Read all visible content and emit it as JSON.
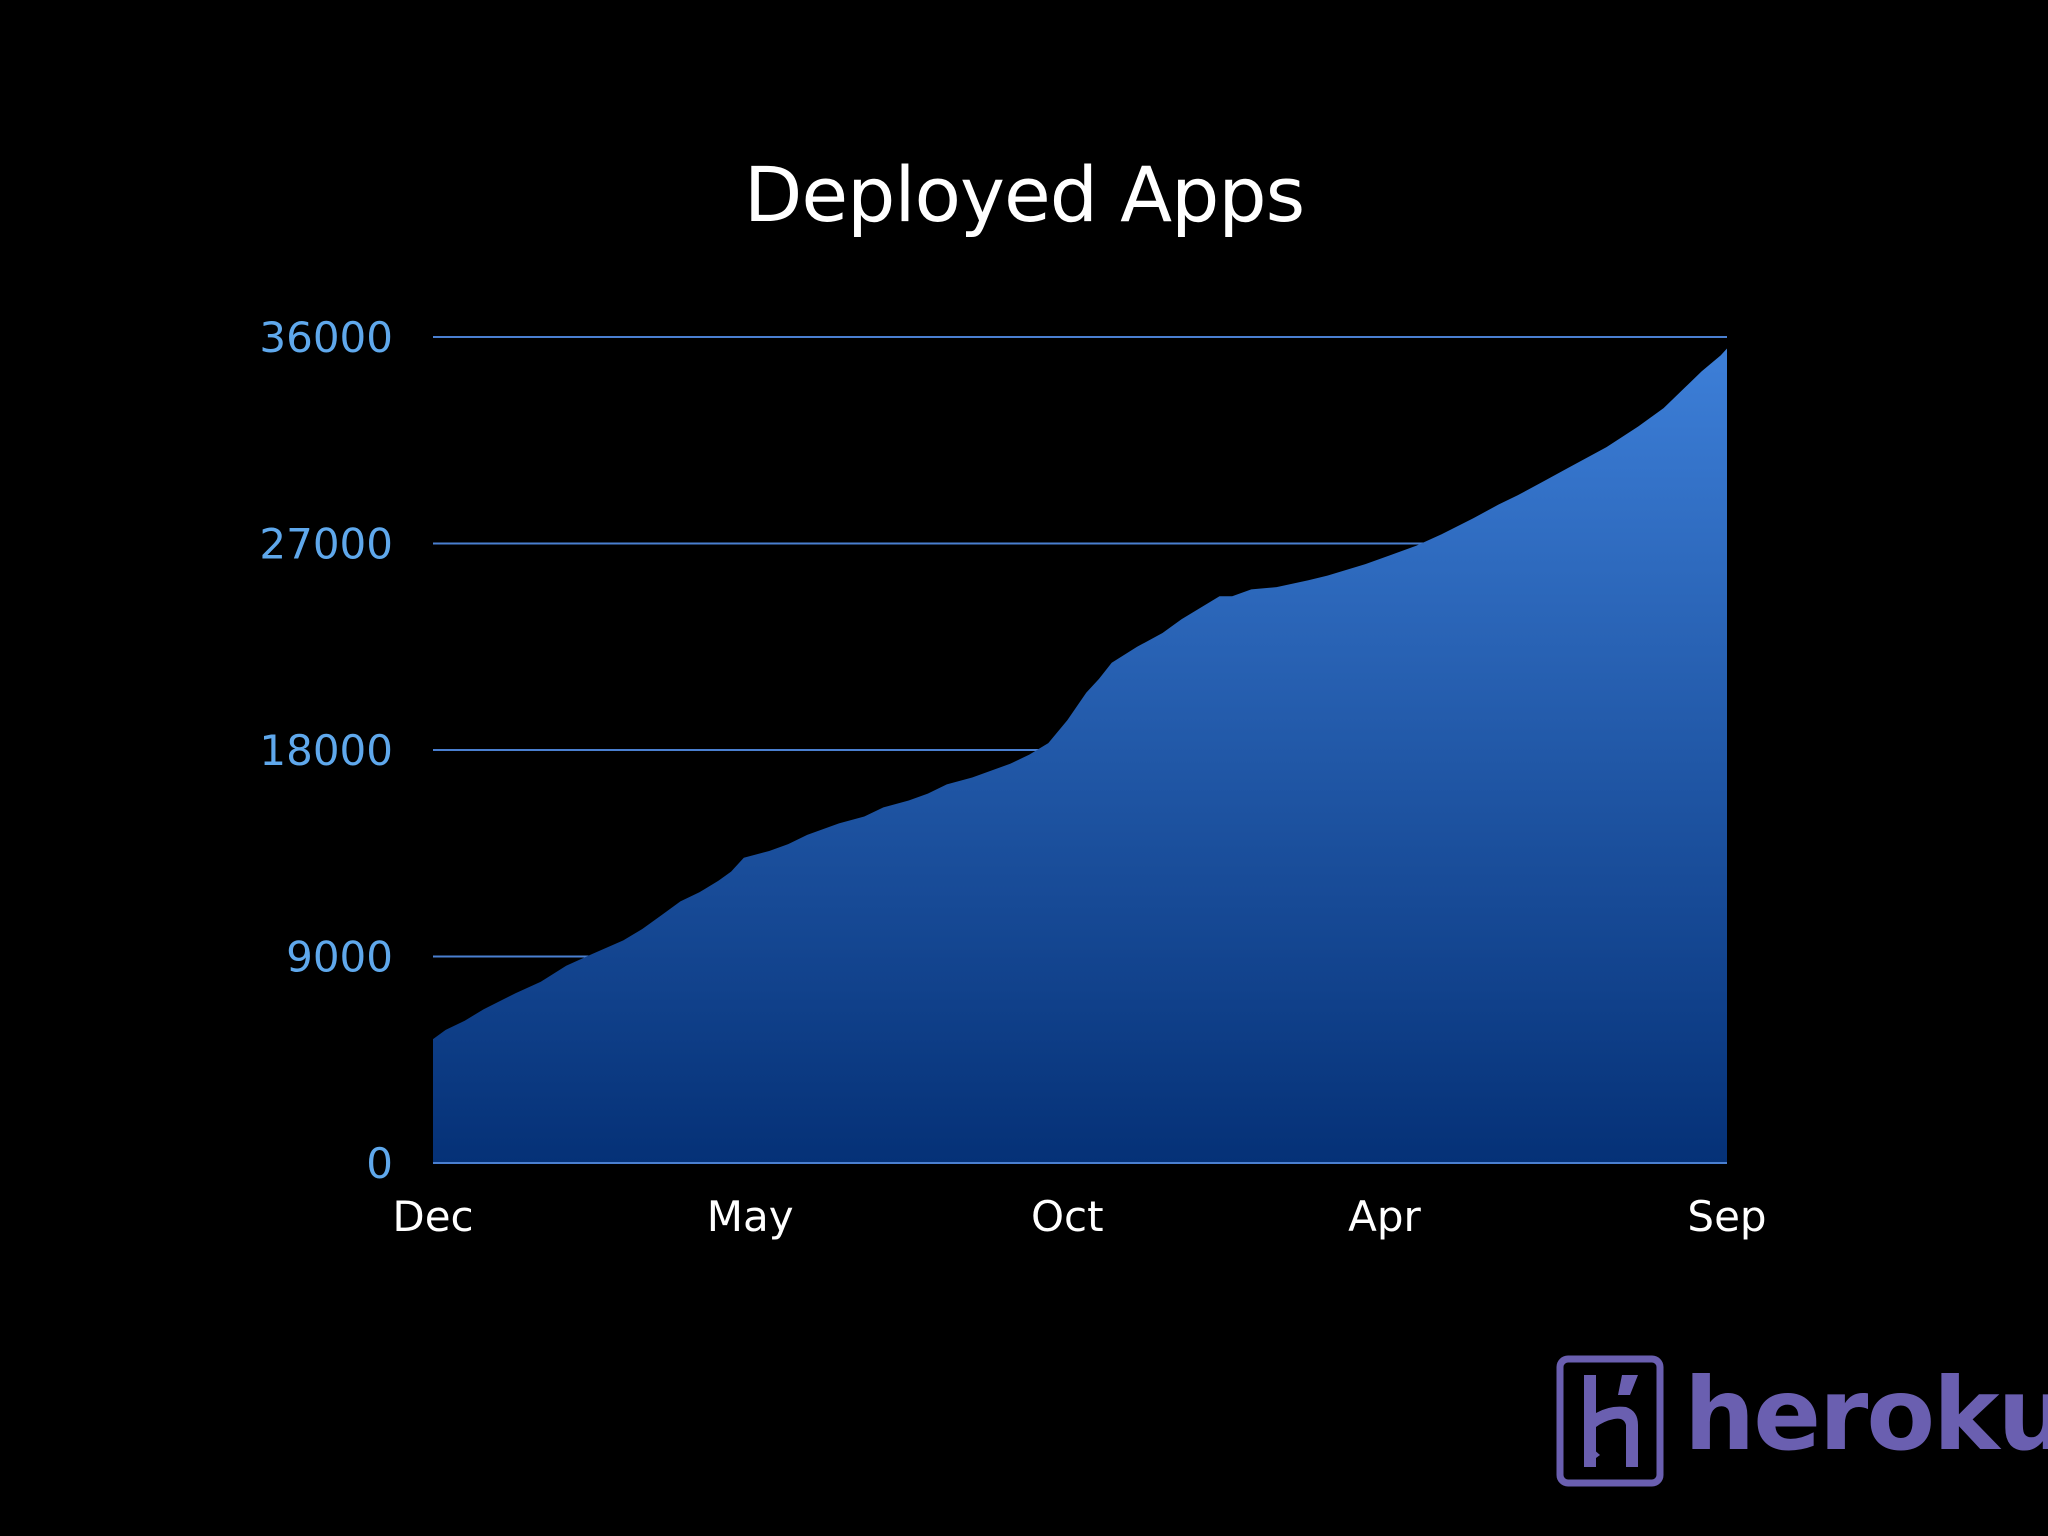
{
  "colors": {
    "background": "#000000",
    "title": "#ffffff",
    "y_tick_label": "#5fa8ec",
    "x_tick_label": "#ffffff",
    "gridline": "#4a7fd0",
    "area_top": "#3d7fd8",
    "area_bottom": "#053177",
    "logo": "#6a5fb0"
  },
  "logo": {
    "name": "heroku-logo-icon",
    "wordmark": "heroku"
  },
  "chart_data": {
    "type": "area",
    "title": "Deployed Apps",
    "xlabel": "",
    "ylabel": "",
    "ylim": [
      0,
      36000
    ],
    "yticks": [
      0,
      9000,
      18000,
      27000,
      36000
    ],
    "ytick_labels": [
      "0",
      "9000",
      "18000",
      "27000",
      "36000"
    ],
    "xtick_labels": [
      "Dec",
      "May",
      "Oct",
      "Apr",
      "Sep"
    ],
    "xtick_positions": [
      0,
      5,
      10,
      15,
      20.4
    ],
    "xlim": [
      0,
      20.4
    ],
    "grid": true,
    "legend": "none",
    "series": [
      {
        "values": [
          [
            0.0,
            5400
          ],
          [
            0.2,
            5800
          ],
          [
            0.5,
            6200
          ],
          [
            0.8,
            6700
          ],
          [
            1.3,
            7400
          ],
          [
            1.7,
            7900
          ],
          [
            2.1,
            8600
          ],
          [
            2.5,
            9100
          ],
          [
            3.0,
            9700
          ],
          [
            3.3,
            10200
          ],
          [
            3.6,
            10800
          ],
          [
            3.9,
            11400
          ],
          [
            4.2,
            11800
          ],
          [
            4.5,
            12300
          ],
          [
            4.7,
            12700
          ],
          [
            4.9,
            13300
          ],
          [
            5.3,
            13600
          ],
          [
            5.6,
            13900
          ],
          [
            5.9,
            14300
          ],
          [
            6.4,
            14800
          ],
          [
            6.8,
            15100
          ],
          [
            7.1,
            15500
          ],
          [
            7.5,
            15800
          ],
          [
            7.8,
            16100
          ],
          [
            8.1,
            16500
          ],
          [
            8.5,
            16800
          ],
          [
            9.1,
            17400
          ],
          [
            9.4,
            17800
          ],
          [
            9.7,
            18300
          ],
          [
            10.0,
            19300
          ],
          [
            10.3,
            20500
          ],
          [
            10.5,
            21100
          ],
          [
            10.7,
            21800
          ],
          [
            11.1,
            22500
          ],
          [
            11.5,
            23100
          ],
          [
            11.8,
            23700
          ],
          [
            12.1,
            24200
          ],
          [
            12.4,
            24700
          ],
          [
            12.6,
            24700
          ],
          [
            12.9,
            25000
          ],
          [
            13.3,
            25100
          ],
          [
            13.8,
            25400
          ],
          [
            14.1,
            25600
          ],
          [
            14.7,
            26100
          ],
          [
            15.1,
            26500
          ],
          [
            15.5,
            26900
          ],
          [
            15.9,
            27400
          ],
          [
            16.4,
            28100
          ],
          [
            16.8,
            28700
          ],
          [
            17.1,
            29100
          ],
          [
            17.5,
            29700
          ],
          [
            17.9,
            30300
          ],
          [
            18.5,
            31200
          ],
          [
            19.0,
            32100
          ],
          [
            19.4,
            32900
          ],
          [
            19.7,
            33700
          ],
          [
            20.0,
            34500
          ],
          [
            20.3,
            35200
          ],
          [
            20.4,
            35500
          ]
        ]
      }
    ]
  }
}
